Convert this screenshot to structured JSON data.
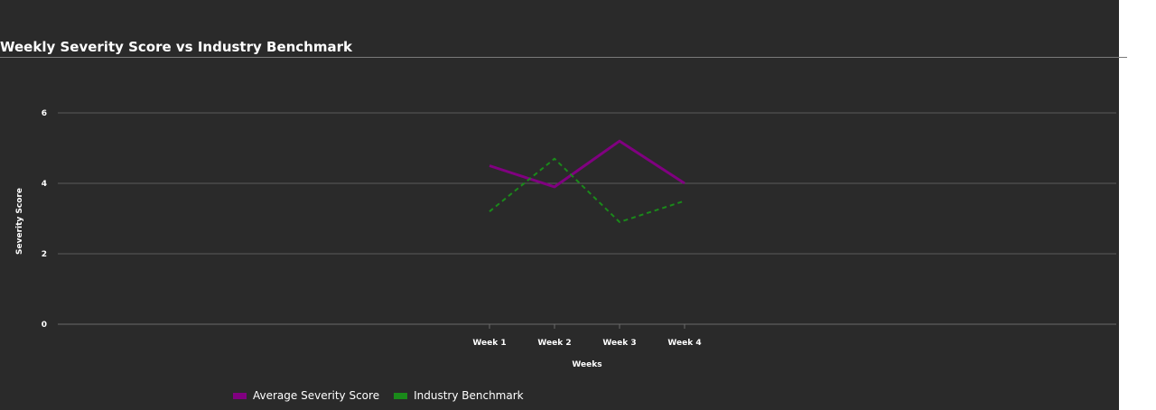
{
  "chart_data": {
    "type": "line",
    "title": "Weekly Severity Score vs Industry Benchmark",
    "xlabel": "Weeks",
    "ylabel": "Severity Score",
    "categories": [
      "Week 1",
      "Week 2",
      "Week 3",
      "Week 4"
    ],
    "ylim": [
      0,
      6
    ],
    "yticks": [
      0,
      2,
      4,
      6
    ],
    "grid": true,
    "legend_position": "bottom-left",
    "series": [
      {
        "name": "Average Severity Score",
        "values": [
          4.5,
          3.9,
          5.2,
          4.0
        ],
        "color": "#800080",
        "style": "solid"
      },
      {
        "name": "Industry Benchmark",
        "values": [
          3.2,
          4.7,
          2.9,
          3.5
        ],
        "color": "#1a8a1a",
        "style": "dashed"
      }
    ]
  }
}
